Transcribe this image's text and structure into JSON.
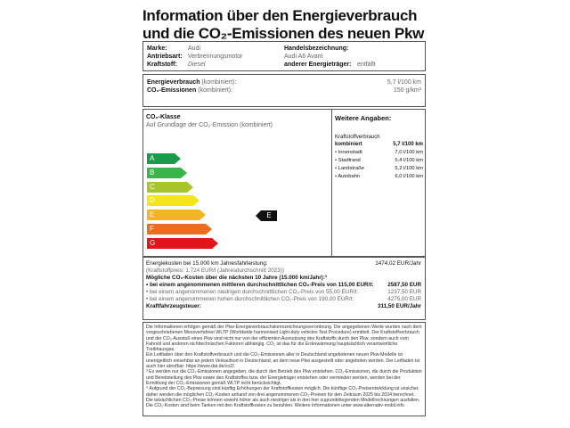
{
  "title": {
    "line1": "Information über den Energieverbrauch",
    "line2": "und die CO₂-Emissionen des neuen Pkw"
  },
  "vehicle": {
    "marke_label": "Marke:",
    "marke": "Audi",
    "antrieb_label": "Antriebsart:",
    "antrieb": "Verbrennungsmotor",
    "kraftstoff_label": "Kraftstoff:",
    "kraftstoff": "Diesel",
    "handel_label": "Handelsbezeichnung:",
    "handel": "Audi A6 Avant",
    "anderer_label": "anderer Energieträger:",
    "anderer": "entfällt"
  },
  "consumption": {
    "energie_label": "Energieverbrauch",
    "energie_sub": "(kombiniert):",
    "energie": "5,7 l/100 km",
    "co2_label": "CO₂-Emissionen",
    "co2_sub": "(kombiniert):",
    "co2": "150 g/km³"
  },
  "co2class": {
    "title": "CO₂-Klasse",
    "subtitle": "Auf Grundlage der CO₂-Emission (kombiniert)",
    "classes": [
      {
        "label": "A",
        "color": "#1a9a4a"
      },
      {
        "label": "B",
        "color": "#39b54a"
      },
      {
        "label": "C",
        "color": "#a8c62b"
      },
      {
        "label": "D",
        "color": "#f3e51a"
      },
      {
        "label": "E",
        "color": "#f6b323"
      },
      {
        "label": "F",
        "color": "#ee6c1e"
      },
      {
        "label": "G",
        "color": "#e3151b"
      }
    ],
    "current": "E"
  },
  "weitere": {
    "title": "Weitere Angaben:",
    "kraft_label": "Kraftstoffverbrauch",
    "kombiniert_label": "kombiniert",
    "kombiniert": "5,7 l/100 km",
    "items": [
      {
        "label": "• Innenstadt",
        "value": "7,0 l/100 km"
      },
      {
        "label": "• Stadtrand",
        "value": "5,4 l/100 km"
      },
      {
        "label": "• Landstraße",
        "value": "5,2 l/100 km"
      },
      {
        "label": "• Autobahn",
        "value": "6,0 l/100 km"
      }
    ]
  },
  "costs": {
    "energie_label": "Energiekosten bei 15.000 km Jahresfahrleistung:",
    "energie": "1474,02 EUR/Jahr",
    "preis": "(Kraftstoffpreis: 1,724 EUR/l (Jahresdurchschnitt 2023))",
    "co2_title": "Mögliche CO₂-Kosten über die nächsten 10 Jahre (15.000 km/Jahr):³",
    "mittel_label": "• bei einem angenommenen mittleren durchschnittlichen CO₂-Preis von 115,00 EUR/t:",
    "mittel": "2587,50 EUR",
    "niedrig_label": "• bei einem angenommenen niedrigen durchschnittlichen CO₂-Preis von 55,00 EUR/t:",
    "niedrig": "1237,50 EUR",
    "hoch_label": "• bei einem angenommenen hohen durchschnittlichen CO₂-Preis von 190,00 EUR/t:",
    "hoch": "4275,00 EUR",
    "steuer_label": "Kraftfahrzeugsteuer:",
    "steuer": "311,50 EUR/Jahr"
  },
  "footnotes": {
    "p1": "Die Informationen erfolgen gemäß der Pkw-Energieverbrauchskennzeichnungsverordnung. Die angegebenen Werte wurden nach dem vorgeschriebenen Messverfahren WLTP (Worldwide harmonised Light-duty vehicles Test Procedure) ermittelt. Der Kraftstoffverbrauch und der CO₂-Ausstoß eines Pkw sind nicht nur von der effizienten Ausnutzung des Kraftstoffs durch den Pkw, sondern auch vom Fahrstil und anderen nichttechnischen Faktoren abhängig. CO₂ ist das für die Erderwärmung hauptsächlich verantwortliche Treibhausgas.",
    "p2": "Ein Leitfaden über den Kraftstoffverbrauch und die CO₂-Emissionen aller in Deutschland angebotenen neuen Pkw-Modelle ist unentgeltlich einsehbar an jedem Verkaufsort in Deutschland, an dem neue Pkw ausgestellt oder angeboten werden. Der Leitfaden ist auch hier abrufbar: https://www.dat.de/co2/.",
    "p3": "³ Es werden nur die CO₂-Emissionen angegeben, die durch den Betrieb des Pkw entstehen. CO₂-Emissionen, die durch die Produktion und Bereitstellung des Pkw sowie des Kraftstoffes bzw. der Energieträger entstehen oder vermieden werden, werden bei der Ermittlung der CO₂-Emissionen gemäß WLTP nicht berücksichtigt.",
    "p4": "⁴ Aufgrund der CO₂-Bepreisung sind künftig Erhöhungen der Kraftstoffkosten möglich. Die künftige CO₂-Preisentwicklung ist unsicher, daher werden die möglichen CO₂-Kosten anhand von drei angenommenen CO₂-Preisen für den Zeitraum 2025 bis 2034 berechnet. Die tatsächlichen CO₂-Preise können sowohl höher als auch niedriger als in den hier zugrundeliegenden Modellrechnungen ausfallen. Die CO₂-Kosten sind beim Tanken mit den Kraftstoffkosten zu bezahlen. Weitere Informationen unter www.alternativ-mobil.info"
  }
}
